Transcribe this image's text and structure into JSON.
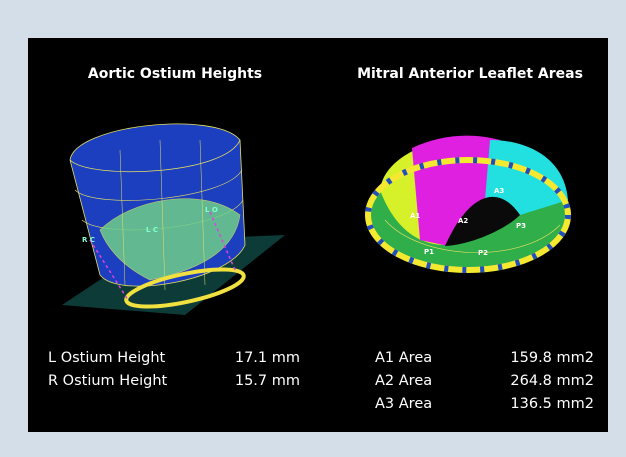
{
  "panels": [
    {
      "title": "Aortic Ostium Heights",
      "image_labels": [
        "L O",
        "L C",
        "R C"
      ],
      "measurements": [
        {
          "label": "L Ostium Height",
          "value": "17.1 mm"
        },
        {
          "label": "R Ostium Height",
          "value": "15.7 mm"
        }
      ]
    },
    {
      "title": "Mitral Anterior Leaflet Areas",
      "image_labels": [
        "A1",
        "A2",
        "A3",
        "P1",
        "P2",
        "P3"
      ],
      "measurements": [
        {
          "label": "A1 Area",
          "value": "159.8 mm2"
        },
        {
          "label": "A2 Area",
          "value": "264.8 mm2"
        },
        {
          "label": "A3 Area",
          "value": "136.5 mm2"
        }
      ]
    }
  ]
}
